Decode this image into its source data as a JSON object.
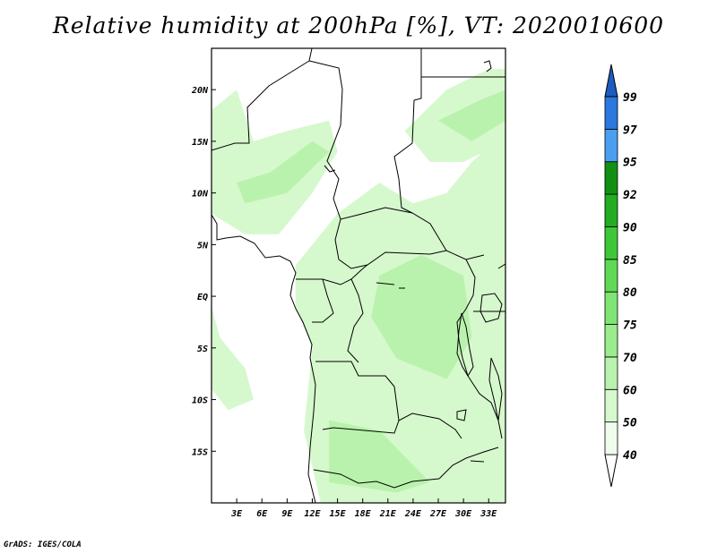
{
  "title": "Relative humidity at 200hPa [%], VT: 2020010600",
  "credit": "GrADS: IGES/COLA",
  "map": {
    "lon_range": [
      0,
      35
    ],
    "lat_range": [
      -20,
      24
    ],
    "lat_ticks": [
      {
        "value": 20,
        "label": "20N"
      },
      {
        "value": 15,
        "label": "15N"
      },
      {
        "value": 10,
        "label": "10N"
      },
      {
        "value": 5,
        "label": "5N"
      },
      {
        "value": 0,
        "label": "EQ"
      },
      {
        "value": -5,
        "label": "5S"
      },
      {
        "value": -10,
        "label": "10S"
      },
      {
        "value": -15,
        "label": "15S"
      }
    ],
    "lon_ticks": [
      {
        "value": 3,
        "label": "3E"
      },
      {
        "value": 6,
        "label": "6E"
      },
      {
        "value": 9,
        "label": "9E"
      },
      {
        "value": 12,
        "label": "12E"
      },
      {
        "value": 15,
        "label": "15E"
      },
      {
        "value": 18,
        "label": "18E"
      },
      {
        "value": 21,
        "label": "21E"
      },
      {
        "value": 24,
        "label": "24E"
      },
      {
        "value": 27,
        "label": "27E"
      },
      {
        "value": 30,
        "label": "30E"
      },
      {
        "value": 33,
        "label": "33E"
      }
    ],
    "humidity_regions": [
      {
        "level": 50,
        "lonlat": [
          [
            3,
            20
          ],
          [
            0,
            18
          ],
          [
            0,
            8
          ],
          [
            4,
            6
          ],
          [
            8,
            6
          ],
          [
            12,
            10
          ],
          [
            15,
            14
          ],
          [
            14,
            17
          ],
          [
            9,
            16
          ],
          [
            5,
            15
          ]
        ]
      },
      {
        "level": 50,
        "lonlat": [
          [
            10,
            3
          ],
          [
            15,
            8
          ],
          [
            20,
            11
          ],
          [
            24,
            9
          ],
          [
            28,
            10
          ],
          [
            31,
            13
          ],
          [
            35,
            16
          ],
          [
            35,
            -20
          ],
          [
            13,
            -20
          ],
          [
            11,
            -13
          ],
          [
            12,
            -5
          ],
          [
            10,
            -1
          ]
        ]
      },
      {
        "level": 50,
        "lonlat": [
          [
            23,
            16
          ],
          [
            28,
            20
          ],
          [
            33,
            22
          ],
          [
            35,
            22
          ],
          [
            35,
            15
          ],
          [
            30,
            13
          ],
          [
            26,
            13
          ]
        ]
      },
      {
        "level": 50,
        "lonlat": [
          [
            0,
            -1
          ],
          [
            1,
            -4
          ],
          [
            4,
            -7
          ],
          [
            5,
            -10
          ],
          [
            2,
            -11
          ],
          [
            0,
            -9
          ]
        ]
      },
      {
        "level": 60,
        "lonlat": [
          [
            4,
            9
          ],
          [
            9,
            10
          ],
          [
            14,
            14
          ],
          [
            12,
            15
          ],
          [
            7,
            12
          ],
          [
            3,
            11
          ]
        ]
      },
      {
        "level": 60,
        "lonlat": [
          [
            20,
            2
          ],
          [
            25,
            4
          ],
          [
            30,
            2
          ],
          [
            31,
            -4
          ],
          [
            28,
            -8
          ],
          [
            22,
            -6
          ],
          [
            19,
            -2
          ]
        ]
      },
      {
        "level": 60,
        "lonlat": [
          [
            27,
            17
          ],
          [
            32,
            19
          ],
          [
            35,
            20
          ],
          [
            35,
            17
          ],
          [
            31,
            15
          ]
        ]
      },
      {
        "level": 60,
        "lonlat": [
          [
            14,
            -12
          ],
          [
            20,
            -13
          ],
          [
            26,
            -18
          ],
          [
            22,
            -19
          ],
          [
            14,
            -18
          ]
        ]
      }
    ]
  },
  "colorbar": {
    "levels": [
      {
        "value": "40",
        "color": "#effcec"
      },
      {
        "value": "50",
        "color": "#d6f8cd"
      },
      {
        "value": "60",
        "color": "#b9f2ac"
      },
      {
        "value": "70",
        "color": "#9beb8f"
      },
      {
        "value": "75",
        "color": "#7ee575"
      },
      {
        "value": "80",
        "color": "#5fd955"
      },
      {
        "value": "85",
        "color": "#3fc73a"
      },
      {
        "value": "90",
        "color": "#22ad22"
      },
      {
        "value": "92",
        "color": "#129012"
      },
      {
        "value": "95",
        "color": "#4a9ff0"
      },
      {
        "value": "97",
        "color": "#2a78e0"
      },
      {
        "value": "99",
        "color": "#1f5cc0"
      }
    ],
    "below_color": "#ffffff"
  },
  "colors": {
    "border": "#000000",
    "background": "#ffffff"
  }
}
